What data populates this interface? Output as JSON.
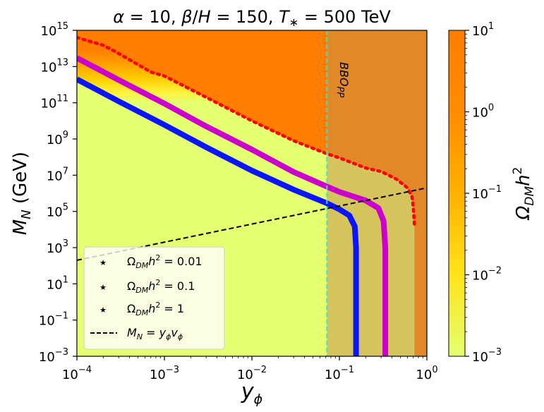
{
  "chart_data": {
    "type": "heatmap",
    "title": {
      "alpha_sym": "α",
      "alpha_rest": " = 10, ",
      "beta_sym": "β",
      "beta_rest": "/",
      "h_sym": "H",
      "beta_val": " = 150, ",
      "t_sym": "T",
      "t_sub": "∗",
      "t_val": " = 500 TeV"
    },
    "xlabel": {
      "main": "y",
      "sub": "ϕ"
    },
    "ylabel": {
      "pre": "M",
      "sub": "N",
      "post": " (GeV)"
    },
    "x_scale": "log",
    "y_scale": "log",
    "xlim": [
      0.0001,
      1
    ],
    "ylim": [
      0.001,
      1000000000000000.0
    ],
    "xticks": [
      {
        "base": "10",
        "exp": "−4"
      },
      {
        "base": "10",
        "exp": "−3"
      },
      {
        "base": "10",
        "exp": "−2"
      },
      {
        "base": "10",
        "exp": "−1"
      },
      {
        "base": "10",
        "exp": "0"
      }
    ],
    "yticks": [
      {
        "base": "10",
        "exp": "−3"
      },
      {
        "base": "10",
        "exp": "−1"
      },
      {
        "base": "10",
        "exp": "1"
      },
      {
        "base": "10",
        "exp": "3"
      },
      {
        "base": "10",
        "exp": "5"
      },
      {
        "base": "10",
        "exp": "7"
      },
      {
        "base": "10",
        "exp": "9"
      },
      {
        "base": "10",
        "exp": "11"
      },
      {
        "base": "10",
        "exp": "13"
      },
      {
        "base": "10",
        "exp": "15"
      }
    ],
    "colorbar": {
      "label": {
        "main": "Ω",
        "sub": "DM",
        "rest": "h",
        "exp": "2"
      },
      "scale": "log",
      "range": [
        0.001,
        10
      ],
      "ticks": [
        {
          "base": "10",
          "exp": "1"
        },
        {
          "base": "10",
          "exp": "0"
        },
        {
          "base": "10",
          "exp": "−1"
        },
        {
          "base": "10",
          "exp": "−2"
        },
        {
          "base": "10",
          "exp": "−3"
        }
      ],
      "colors": [
        "#e4ff6f",
        "#ffe31a",
        "#ffb000",
        "#ff8c00",
        "#ff7d00"
      ]
    },
    "series": [
      {
        "name": "Ω_DM h² = 0.01",
        "color": "#0a14ff",
        "style": "thick-curve",
        "points": [
          [
            0.0001,
            2000000000000.0
          ],
          [
            0.0003,
            120000000000.0
          ],
          [
            0.001,
            6000000000.0
          ],
          [
            0.003,
            350000000.0
          ],
          [
            0.01,
            18000000.0
          ],
          [
            0.03,
            1600000.0
          ],
          [
            0.07,
            300000.0
          ],
          [
            0.1,
            130000.0
          ],
          [
            0.13,
            60000.0
          ],
          [
            0.15,
            15000.0
          ],
          [
            0.155,
            1000.0
          ],
          [
            0.155,
            0.001
          ]
        ]
      },
      {
        "name": "Ω_DM h² = 0.1",
        "color": "#cc00cc",
        "style": "thick-curve",
        "points": [
          [
            0.0001,
            30000000000000.0
          ],
          [
            0.0003,
            1800000000000.0
          ],
          [
            0.001,
            90000000000.0
          ],
          [
            0.003,
            5000000000.0
          ],
          [
            0.01,
            260000000.0
          ],
          [
            0.03,
            15000000.0
          ],
          [
            0.07,
            2500000.0
          ],
          [
            0.1,
            1200000.0
          ],
          [
            0.2,
            400000.0
          ],
          [
            0.28,
            150000.0
          ],
          [
            0.32,
            30000.0
          ],
          [
            0.335,
            1000.0
          ],
          [
            0.335,
            0.001
          ]
        ]
      },
      {
        "name": "Ω_DM h² = 1",
        "color": "#ff0000",
        "style": "dotted",
        "points": [
          [
            0.0001,
            400000000000000.0
          ],
          [
            0.0002,
            150000000000000.0
          ],
          [
            0.00027,
            70000000000000.0
          ],
          [
            0.0007,
            5000000000000.0
          ],
          [
            0.001,
            3000000000000.0
          ],
          [
            0.003,
            200000000000.0
          ],
          [
            0.01,
            10000000000.0
          ],
          [
            0.03,
            800000000.0
          ],
          [
            0.07,
            160000000.0
          ],
          [
            0.1,
            90000000.0
          ],
          [
            0.2,
            25000000.0
          ],
          [
            0.3,
            16000000.0
          ],
          [
            0.45,
            6000000.0
          ],
          [
            0.6,
            2000000.0
          ],
          [
            0.68,
            600000.0
          ],
          [
            0.7,
            150000.0
          ],
          [
            0.72,
            20000.0
          ]
        ]
      }
    ],
    "reference_lines": [
      {
        "name": "M_N = y_ϕ v_ϕ",
        "style": "dashed",
        "color": "#000000",
        "points": [
          [
            0.0001,
            200
          ],
          [
            1,
            2000000.0
          ]
        ]
      },
      {
        "name": "BBO_PP boundary",
        "style": "dashed",
        "color": "#40e0d0",
        "x": 0.072
      }
    ],
    "shaded_region": {
      "label": "BBO",
      "label_sub": "PP",
      "x_from": 0.072,
      "x_to": 1,
      "color": "#e0a050"
    },
    "legend": {
      "placement": "lower-left",
      "entries": [
        {
          "pre": "Ω",
          "sub": "DM",
          "rest": "h",
          "exp": "2",
          "val": " = 0.01",
          "color": "#0a14ff",
          "marker": "star"
        },
        {
          "pre": "Ω",
          "sub": "DM",
          "rest": "h",
          "exp": "2",
          "val": " = 0.1",
          "color": "#cc00cc",
          "marker": "star"
        },
        {
          "pre": "Ω",
          "sub": "DM",
          "rest": "h",
          "exp": "2",
          "val": " = 1",
          "color": "#ff0000",
          "marker": "star"
        },
        {
          "pre": "M",
          "sub": "N",
          "rest": " = y",
          "sub2": "ϕ",
          "rest2": "v",
          "sub3": "ϕ",
          "color": "#000000",
          "marker": "dash"
        }
      ]
    }
  }
}
